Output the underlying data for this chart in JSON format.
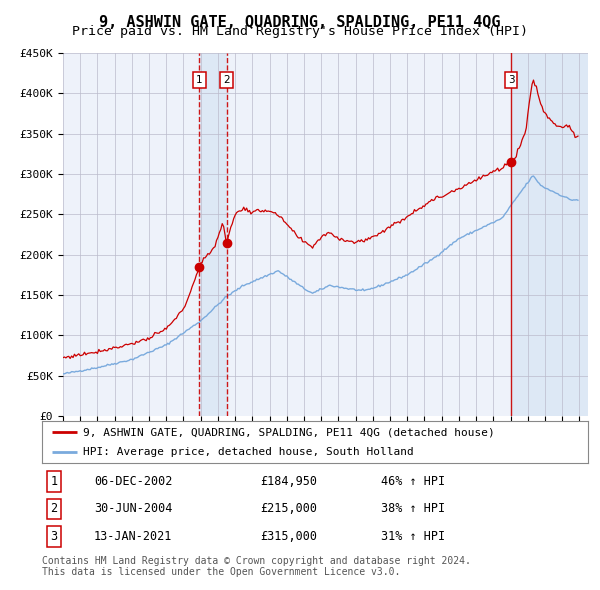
{
  "title": "9, ASHWIN GATE, QUADRING, SPALDING, PE11 4QG",
  "subtitle": "Price paid vs. HM Land Registry's House Price Index (HPI)",
  "ylim": [
    0,
    450000
  ],
  "yticks": [
    0,
    50000,
    100000,
    150000,
    200000,
    250000,
    300000,
    350000,
    400000,
    450000
  ],
  "ytick_labels": [
    "£0",
    "£50K",
    "£100K",
    "£150K",
    "£200K",
    "£250K",
    "£300K",
    "£350K",
    "£400K",
    "£450K"
  ],
  "xlim_start": 1995.0,
  "xlim_end": 2025.5,
  "background_color": "#ffffff",
  "plot_bg_color": "#eef2fa",
  "grid_color": "#bbbbcc",
  "red_line_color": "#cc0000",
  "blue_line_color": "#7aaadd",
  "transaction_line_color": "#cc0000",
  "shade_color": "#dde8f5",
  "marker_box_color": "#cc0000",
  "transactions": [
    {
      "id": 1,
      "date": "06-DEC-2002",
      "year": 2002.92,
      "price": 184950,
      "pct": "46%",
      "direction": "↑"
    },
    {
      "id": 2,
      "date": "30-JUN-2004",
      "year": 2004.5,
      "price": 215000,
      "pct": "38%",
      "direction": "↑"
    },
    {
      "id": 3,
      "date": "13-JAN-2021",
      "year": 2021.04,
      "price": 315000,
      "pct": "31%",
      "direction": "↑"
    }
  ],
  "legend_entries": [
    {
      "label": "9, ASHWIN GATE, QUADRING, SPALDING, PE11 4QG (detached house)",
      "color": "#cc0000"
    },
    {
      "label": "HPI: Average price, detached house, South Holland",
      "color": "#7aaadd"
    }
  ],
  "footer_text": "Contains HM Land Registry data © Crown copyright and database right 2024.\nThis data is licensed under the Open Government Licence v3.0.",
  "title_fontsize": 11,
  "subtitle_fontsize": 9.5,
  "tick_fontsize": 8,
  "legend_fontsize": 8,
  "footer_fontsize": 7,
  "table_fontsize": 8.5
}
